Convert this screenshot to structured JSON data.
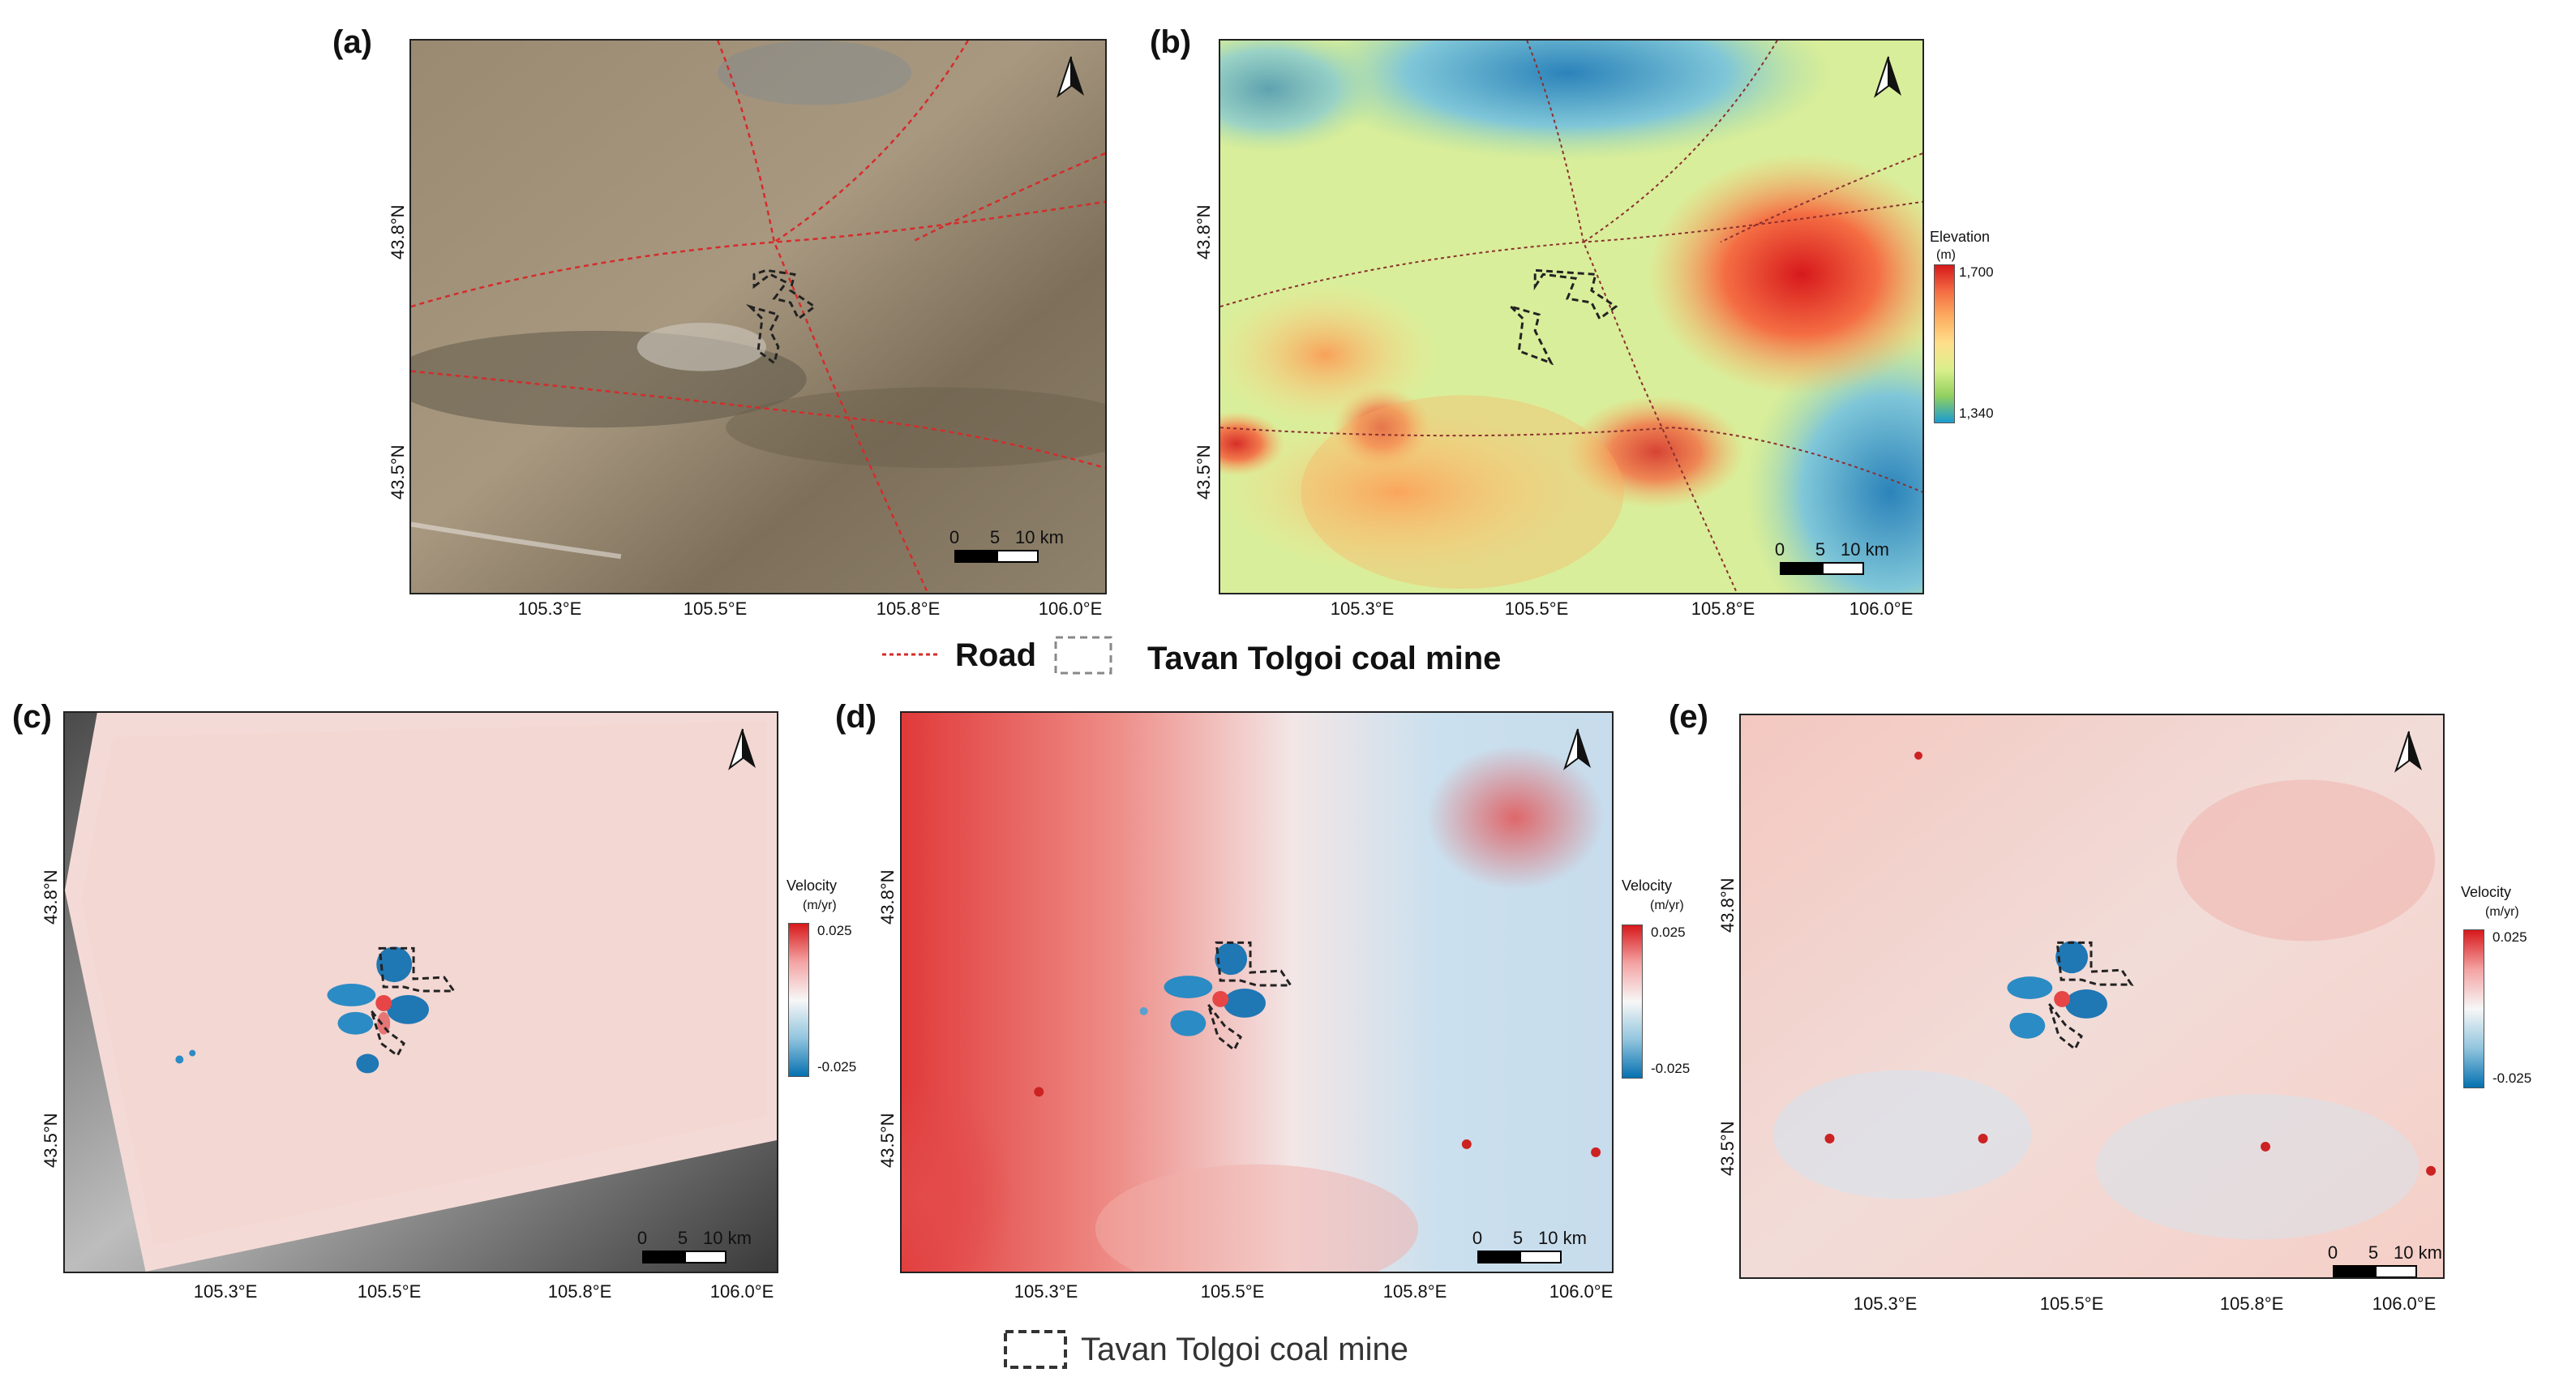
{
  "panels": {
    "a": {
      "label": "(a)"
    },
    "b": {
      "label": "(b)",
      "colorbar": {
        "title": "Elevation",
        "unit": "(m)",
        "max": "1,700",
        "min": "1,340"
      }
    },
    "c": {
      "label": "(c)",
      "colorbar": {
        "title": "Velocity",
        "unit": "(m/yr)",
        "max": "0.025",
        "min": "-0.025"
      }
    },
    "d": {
      "label": "(d)",
      "colorbar": {
        "title": "Velocity",
        "unit": "(m/yr)",
        "max": "0.025",
        "min": "-0.025"
      }
    },
    "e": {
      "label": "(e)",
      "colorbar": {
        "title": "Velocity",
        "unit": "(m/yr)",
        "max": "0.025",
        "min": "-0.025"
      }
    }
  },
  "axes": {
    "x_ticks": [
      "105.3°E",
      "105.5°E",
      "105.8°E",
      "106.0°E"
    ],
    "y_ticks": [
      "43.8°N",
      "43.5°N"
    ]
  },
  "scalebar": {
    "zero": "0",
    "mid": "5",
    "end": "10 km"
  },
  "legend_top": {
    "road": "Road",
    "mine": "Tavan Tolgoi coal mine"
  },
  "legend_bottom": {
    "mine": "Tavan Tolgoi coal mine"
  },
  "colors": {
    "road": "#d62b2b",
    "elevation_high": "#e31a1c",
    "elevation_low": "#2b9fd1",
    "velocity_pos": "#e0303a",
    "velocity_neg": "#1f8ac0"
  }
}
